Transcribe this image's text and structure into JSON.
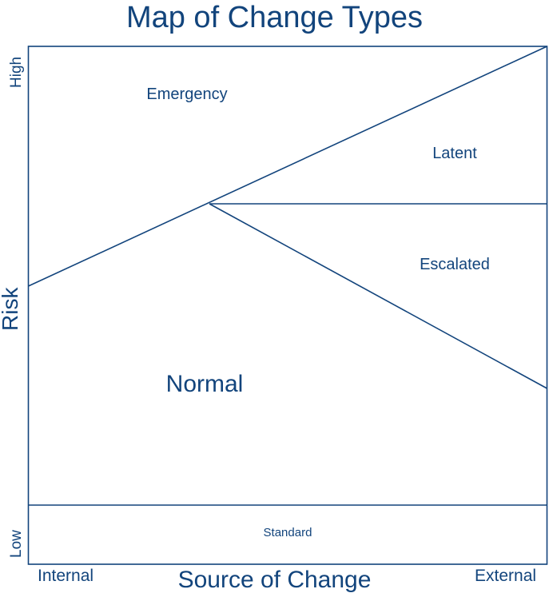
{
  "title": "Map of Change Types",
  "axes": {
    "x_title": "Source of Change",
    "x_min": "Internal",
    "x_max": "External",
    "y_title": "Risk",
    "y_max": "High",
    "y_min": "Low"
  },
  "regions": {
    "emergency": "Emergency",
    "latent": "Latent",
    "escalated": "Escalated",
    "normal": "Normal",
    "standard": "Standard"
  },
  "colors": {
    "line": "#12447c",
    "text": "#12447c",
    "background": "#ffffff"
  }
}
